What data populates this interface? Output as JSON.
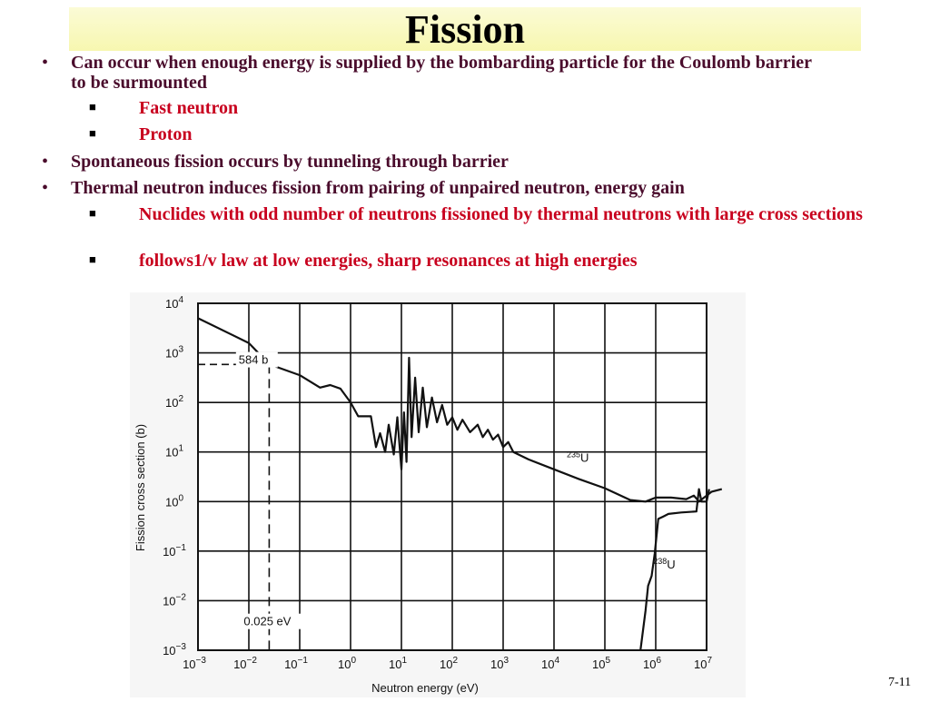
{
  "slide": {
    "title": "Fission",
    "page_number": "7-11"
  },
  "bullets": [
    {
      "level": 1,
      "text": "Can occur when enough energy is supplied by the bombarding particle for the Coulomb barrier to be surmounted"
    },
    {
      "level": 2,
      "text": "Fast neutron"
    },
    {
      "level": 2,
      "text": "Proton"
    },
    {
      "level": 1,
      "text": "Spontaneous fission occurs by tunneling through barrier"
    },
    {
      "level": 1,
      "text": "Thermal neutron induces fission from pairing of unpaired neutron, energy gain"
    },
    {
      "level": 2,
      "text": "Nuclides with odd number of neutrons fissioned by thermal neutrons with large cross sections"
    },
    {
      "level": 2,
      "text": "follows1/v law at low energies, sharp resonances at high energies"
    }
  ],
  "colors": {
    "bullet_l1": "#4a0c2c",
    "bullet_l2": "#c8001e",
    "title_band": "#f7f7b0"
  },
  "chart_data": {
    "type": "line",
    "title": "",
    "xlabel": "Neutron energy (eV)",
    "ylabel": "Fission cross section (b)",
    "x_scale": "log",
    "y_scale": "log",
    "xlim_exp": [
      -3,
      7
    ],
    "ylim_exp": [
      -3,
      4
    ],
    "x_ticks": [
      {
        "base": "10",
        "exp": "−3"
      },
      {
        "base": "10",
        "exp": "−2"
      },
      {
        "base": "10",
        "exp": "−1"
      },
      {
        "base": "10",
        "exp": "0"
      },
      {
        "base": "10",
        "exp": "1"
      },
      {
        "base": "10",
        "exp": "2"
      },
      {
        "base": "10",
        "exp": "3"
      },
      {
        "base": "10",
        "exp": "4"
      },
      {
        "base": "10",
        "exp": "5"
      },
      {
        "base": "10",
        "exp": "6"
      },
      {
        "base": "10",
        "exp": "7"
      }
    ],
    "y_ticks": [
      {
        "base": "10",
        "exp": "−3"
      },
      {
        "base": "10",
        "exp": "−2"
      },
      {
        "base": "10",
        "exp": "−1"
      },
      {
        "base": "10",
        "exp": "0"
      },
      {
        "base": "10",
        "exp": "1"
      },
      {
        "base": "10",
        "exp": "2"
      },
      {
        "base": "10",
        "exp": "3"
      },
      {
        "base": "10",
        "exp": "4"
      }
    ],
    "grid": true,
    "annotations": [
      {
        "text": "584 b",
        "x_exp": -2.2,
        "y_exp": 2.78
      },
      {
        "text": "0.025 eV",
        "x_exp": -1.6,
        "y_exp": -2.5
      }
    ],
    "reference_point": {
      "x_exp": -1.6,
      "y_exp": 2.766
    },
    "series": [
      {
        "name": "235U",
        "label_mass": "235",
        "label_symbol": "U",
        "points_log10": [
          [
            -3.0,
            3.7
          ],
          [
            -2.0,
            3.2
          ],
          [
            -1.6,
            2.77
          ],
          [
            -1.0,
            2.55
          ],
          [
            -0.6,
            2.3
          ],
          [
            -0.4,
            2.35
          ],
          [
            -0.2,
            2.28
          ],
          [
            0.0,
            2.0
          ],
          [
            0.15,
            1.72
          ],
          [
            0.4,
            1.72
          ],
          [
            0.5,
            1.1
          ],
          [
            0.58,
            1.38
          ],
          [
            0.68,
            1.0
          ],
          [
            0.75,
            1.55
          ],
          [
            0.85,
            0.95
          ],
          [
            0.92,
            1.7
          ],
          [
            1.0,
            0.65
          ],
          [
            1.05,
            1.8
          ],
          [
            1.1,
            0.8
          ],
          [
            1.15,
            2.9
          ],
          [
            1.2,
            1.3
          ],
          [
            1.27,
            2.5
          ],
          [
            1.34,
            1.4
          ],
          [
            1.42,
            2.3
          ],
          [
            1.5,
            1.5
          ],
          [
            1.6,
            2.1
          ],
          [
            1.7,
            1.6
          ],
          [
            1.8,
            1.95
          ],
          [
            1.9,
            1.55
          ],
          [
            2.0,
            1.7
          ],
          [
            2.1,
            1.45
          ],
          [
            2.2,
            1.65
          ],
          [
            2.35,
            1.4
          ],
          [
            2.5,
            1.55
          ],
          [
            2.6,
            1.3
          ],
          [
            2.7,
            1.45
          ],
          [
            2.8,
            1.25
          ],
          [
            2.9,
            1.35
          ],
          [
            3.0,
            1.1
          ],
          [
            3.1,
            1.2
          ],
          [
            3.2,
            1.0
          ],
          [
            3.5,
            0.85
          ],
          [
            4.0,
            0.65
          ],
          [
            4.5,
            0.45
          ],
          [
            5.0,
            0.27
          ],
          [
            5.5,
            0.03
          ],
          [
            5.8,
            0.0
          ],
          [
            6.0,
            0.08
          ],
          [
            6.3,
            0.08
          ],
          [
            6.6,
            0.05
          ],
          [
            6.75,
            0.12
          ],
          [
            6.85,
            0.0
          ],
          [
            7.0,
            0.12
          ],
          [
            7.1,
            0.2
          ],
          [
            7.3,
            0.25
          ]
        ]
      },
      {
        "name": "238U",
        "label_mass": "238",
        "label_symbol": "U",
        "points_log10": [
          [
            5.7,
            -3.0
          ],
          [
            5.8,
            -2.2
          ],
          [
            5.85,
            -1.7
          ],
          [
            5.92,
            -1.5
          ],
          [
            5.98,
            -1.05
          ],
          [
            6.05,
            -0.35
          ],
          [
            6.15,
            -0.3
          ],
          [
            6.25,
            -0.25
          ],
          [
            6.5,
            -0.22
          ],
          [
            6.8,
            -0.2
          ],
          [
            6.85,
            0.25
          ],
          [
            6.9,
            0.0
          ],
          [
            7.0,
            0.0
          ],
          [
            7.05,
            0.25
          ]
        ]
      }
    ]
  }
}
